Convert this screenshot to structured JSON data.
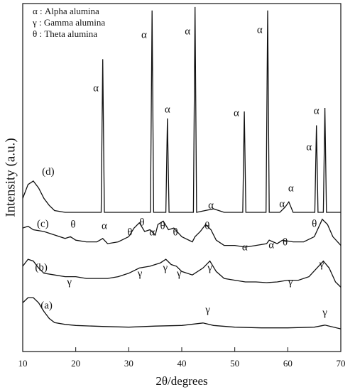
{
  "chart_data": {
    "type": "line",
    "xlabel": "2θ/degrees",
    "ylabel": "Intensity (a.u.)",
    "xlim": [
      10,
      70
    ],
    "xticks": [
      10,
      20,
      30,
      40,
      50,
      60,
      70
    ],
    "ylim": [
      0,
      100
    ],
    "key": [
      "α : Alpha alumina",
      "γ : Gamma alumina",
      "θ : Theta alumina"
    ],
    "series": [
      {
        "name": "(d)",
        "color": "#111111",
        "x": [
          10,
          11,
          12,
          13,
          14,
          15,
          16,
          18,
          20,
          22,
          24.8,
          25.1,
          25.4,
          28,
          30,
          32,
          34.1,
          34.4,
          34.7,
          37,
          37.3,
          37.6,
          40,
          42.2,
          42.5,
          42.8,
          46,
          48,
          50,
          51.5,
          51.8,
          52.1,
          54,
          55.9,
          56.2,
          56.5,
          58.5,
          59.5,
          60.2,
          61,
          63,
          65.1,
          65.4,
          65.7,
          66.7,
          67,
          67.3,
          70
        ],
        "values": [
          44,
          48,
          49,
          47,
          44,
          42,
          40.5,
          40,
          40,
          40,
          40,
          84,
          40,
          40,
          40,
          40,
          40,
          98,
          40,
          40,
          67,
          40,
          40,
          40,
          99,
          40,
          41,
          40,
          40,
          40,
          69,
          40,
          40,
          40,
          98,
          40,
          40,
          41.5,
          43,
          40,
          40,
          40,
          65,
          40,
          40,
          70,
          40,
          40
        ]
      },
      {
        "name": "(c)",
        "color": "#111111",
        "x": [
          10,
          11,
          12,
          14,
          16,
          18,
          19,
          20,
          22,
          24,
          25.1,
          26,
          28,
          30,
          31,
          32,
          33,
          34,
          35,
          35.5,
          36.5,
          37.5,
          38.5,
          40,
          42,
          42.5,
          43.5,
          44.5,
          45.5,
          46.5,
          48,
          50,
          52,
          54,
          56,
          56.5,
          58,
          59,
          61,
          63,
          65,
          66.5,
          67.5,
          68.5,
          70
        ],
        "values": [
          35.5,
          36,
          35,
          34.5,
          33.5,
          32.5,
          33,
          32,
          31.5,
          31.5,
          32.5,
          31,
          31.5,
          33,
          35.5,
          37,
          34.5,
          35,
          33.5,
          36.5,
          37.5,
          35,
          35.5,
          33,
          31.5,
          33,
          34.5,
          36.5,
          35,
          32,
          30.5,
          30.5,
          30,
          30.5,
          31,
          32,
          31,
          32,
          31.5,
          31.5,
          33,
          38,
          36.5,
          33,
          30.5
        ]
      },
      {
        "name": "(b)",
        "color": "#111111",
        "x": [
          10,
          11,
          12,
          13,
          14,
          16,
          18,
          20,
          22,
          24,
          26,
          28,
          30,
          32,
          34,
          36,
          37,
          38,
          39,
          40,
          42,
          44,
          45.3,
          46.5,
          48,
          50,
          52,
          54,
          56,
          58,
          60,
          62,
          64,
          65.5,
          66.7,
          67.8,
          69,
          70
        ],
        "values": [
          24.5,
          26.5,
          26,
          24,
          22.5,
          22,
          21.5,
          21.5,
          21,
          21,
          21,
          21.5,
          22.5,
          24,
          24.5,
          25.5,
          26.5,
          25,
          24.5,
          23,
          22,
          24,
          26,
          23,
          21,
          20.5,
          20,
          20,
          19.8,
          20,
          20.5,
          20.5,
          21.5,
          24,
          26,
          24,
          20,
          18.5
        ]
      },
      {
        "name": "(a)",
        "color": "#111111",
        "x": [
          10,
          11,
          12,
          13,
          14,
          15,
          16,
          18,
          20,
          25,
          30,
          35,
          40,
          44,
          46,
          50,
          55,
          60,
          65,
          67,
          70
        ],
        "values": [
          14,
          15.5,
          15.5,
          14,
          11.5,
          9.5,
          8.3,
          7.8,
          7.5,
          7.2,
          7,
          7.3,
          7.5,
          8.2,
          7.5,
          7,
          6.8,
          6.8,
          7,
          7.6,
          6.5
        ]
      }
    ],
    "annotations": [
      {
        "text": "α",
        "x": 23.8,
        "y": 75.5
      },
      {
        "text": "α",
        "x": 32.9,
        "y": 90.8
      },
      {
        "text": "α",
        "x": 37.3,
        "y": 69.4
      },
      {
        "text": "α",
        "x": 41.1,
        "y": 91.8
      },
      {
        "text": "α",
        "x": 50.3,
        "y": 68.4
      },
      {
        "text": "α",
        "x": 54.7,
        "y": 92.2
      },
      {
        "text": "α",
        "x": 45.5,
        "y": 41.8
      },
      {
        "text": "α",
        "x": 58.9,
        "y": 42.2
      },
      {
        "text": "α",
        "x": 60.6,
        "y": 46.7
      },
      {
        "text": "α",
        "x": 64,
        "y": 58.6
      },
      {
        "text": "α",
        "x": 65.4,
        "y": 69
      },
      {
        "text": "θ",
        "x": 19.5,
        "y": 36.3
      },
      {
        "text": "α",
        "x": 25.4,
        "y": 35.9
      },
      {
        "text": "θ",
        "x": 30.2,
        "y": 34.1
      },
      {
        "text": "θ",
        "x": 32.5,
        "y": 36.9
      },
      {
        "text": "α",
        "x": 34.4,
        "y": 34.1
      },
      {
        "text": "θ",
        "x": 36.4,
        "y": 35.9
      },
      {
        "text": "θ",
        "x": 38.8,
        "y": 34.1
      },
      {
        "text": "θ",
        "x": 44.8,
        "y": 35.9
      },
      {
        "text": "α",
        "x": 51.9,
        "y": 29.8
      },
      {
        "text": "α",
        "x": 56.9,
        "y": 30.4
      },
      {
        "text": "θ",
        "x": 59.5,
        "y": 31.2
      },
      {
        "text": "θ",
        "x": 65,
        "y": 36.5
      },
      {
        "text": "γ",
        "x": 18.8,
        "y": 19.8
      },
      {
        "text": "γ",
        "x": 32.1,
        "y": 22.2
      },
      {
        "text": "γ",
        "x": 36.9,
        "y": 23.9
      },
      {
        "text": "γ",
        "x": 39.5,
        "y": 22.2
      },
      {
        "text": "γ",
        "x": 45.3,
        "y": 23.9
      },
      {
        "text": "γ",
        "x": 60.5,
        "y": 19.8
      },
      {
        "text": "γ",
        "x": 66.4,
        "y": 24.9
      },
      {
        "text": "γ",
        "x": 44.9,
        "y": 11.8
      },
      {
        "text": "γ",
        "x": 67,
        "y": 11
      }
    ]
  }
}
